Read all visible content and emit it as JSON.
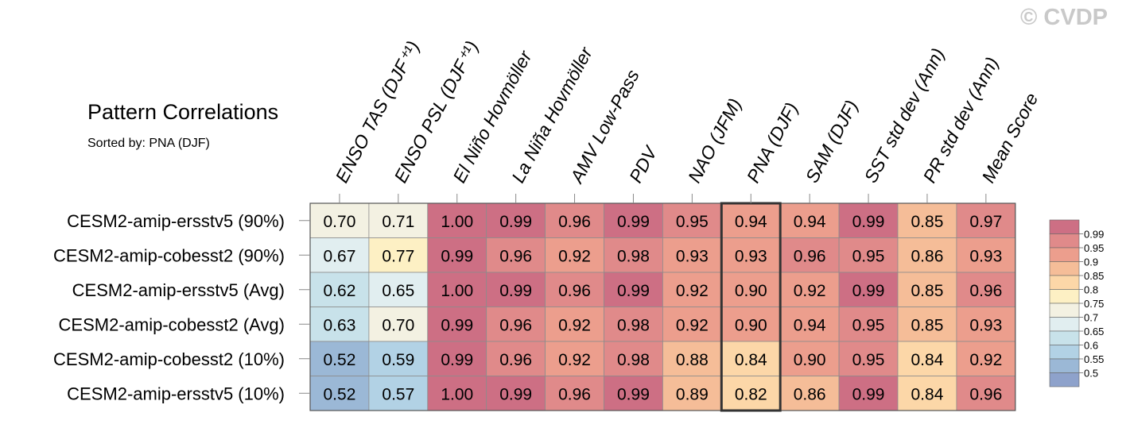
{
  "title": "Pattern Correlations",
  "subtitle": "Sorted by: PNA (DJF)",
  "watermark": "© CVDP",
  "chart_data": {
    "type": "heatmap",
    "columns": [
      "ENSO TAS (DJF⁺¹)",
      "ENSO PSL (DJF⁺¹)",
      "El Niño Hovmöller",
      "La Niña Hovmöller",
      "AMV Low-Pass",
      "PDV",
      "NAO (JFM)",
      "PNA (DJF)",
      "SAM (DJF)",
      "SST std dev (Ann)",
      "PR std dev (Ann)",
      "Mean Score"
    ],
    "rows": [
      "CESM2-amip-ersstv5 (90%)",
      "CESM2-amip-cobesst2 (90%)",
      "CESM2-amip-ersstv5 (Avg)",
      "CESM2-amip-cobesst2 (Avg)",
      "CESM2-amip-cobesst2 (10%)",
      "CESM2-amip-ersstv5 (10%)"
    ],
    "values": [
      [
        "0.70",
        "0.71",
        "1.00",
        "0.99",
        "0.96",
        "0.99",
        "0.95",
        "0.94",
        "0.94",
        "0.99",
        "0.85",
        "0.97"
      ],
      [
        "0.67",
        "0.77",
        "0.99",
        "0.96",
        "0.92",
        "0.98",
        "0.93",
        "0.93",
        "0.96",
        "0.95",
        "0.86",
        "0.93"
      ],
      [
        "0.62",
        "0.65",
        "1.00",
        "0.99",
        "0.96",
        "0.99",
        "0.92",
        "0.90",
        "0.92",
        "0.99",
        "0.85",
        "0.96"
      ],
      [
        "0.63",
        "0.70",
        "0.99",
        "0.96",
        "0.92",
        "0.98",
        "0.92",
        "0.90",
        "0.94",
        "0.95",
        "0.85",
        "0.93"
      ],
      [
        "0.52",
        "0.59",
        "0.99",
        "0.96",
        "0.92",
        "0.98",
        "0.88",
        "0.84",
        "0.90",
        "0.95",
        "0.84",
        "0.92"
      ],
      [
        "0.52",
        "0.57",
        "1.00",
        "0.99",
        "0.96",
        "0.99",
        "0.89",
        "0.82",
        "0.86",
        "0.99",
        "0.84",
        "0.96"
      ]
    ],
    "highlighted_column": "PNA (DJF)",
    "colorbar": {
      "labels": [
        "0.99",
        "0.95",
        "0.9",
        "0.85",
        "0.8",
        "0.75",
        "0.7",
        "0.65",
        "0.6",
        "0.55",
        "0.5"
      ],
      "colors": [
        "#cd6f84",
        "#e08a8a",
        "#ec9e8d",
        "#f5bd98",
        "#fcd7a8",
        "#fdf0c4",
        "#f3f1e2",
        "#e1eef0",
        "#c8e2ea",
        "#b2d2e5",
        "#9bb8d6",
        "#8ea2cb"
      ]
    }
  }
}
